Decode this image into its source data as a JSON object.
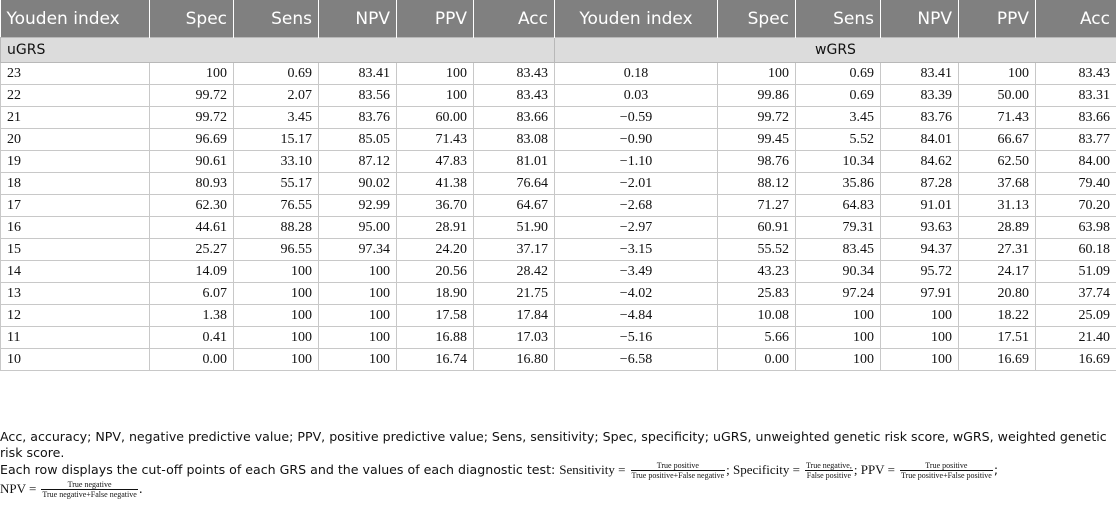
{
  "headers": [
    "Youden index",
    "Spec",
    "Sens",
    "NPV",
    "PPV",
    "Acc",
    "Youden index",
    "Spec",
    "Sens",
    "NPV",
    "PPV",
    "Acc"
  ],
  "group_left": "uGRS",
  "group_right": "wGRS",
  "rows": [
    [
      "23",
      "100",
      "0.69",
      "83.41",
      "100",
      "83.43",
      "0.18",
      "100",
      "0.69",
      "83.41",
      "100",
      "83.43"
    ],
    [
      "22",
      "99.72",
      "2.07",
      "83.56",
      "100",
      "83.43",
      "0.03",
      "99.86",
      "0.69",
      "83.39",
      "50.00",
      "83.31"
    ],
    [
      "21",
      "99.72",
      "3.45",
      "83.76",
      "60.00",
      "83.66",
      "−0.59",
      "99.72",
      "3.45",
      "83.76",
      "71.43",
      "83.66"
    ],
    [
      "20",
      "96.69",
      "15.17",
      "85.05",
      "71.43",
      "83.08",
      "−0.90",
      "99.45",
      "5.52",
      "84.01",
      "66.67",
      "83.77"
    ],
    [
      "19",
      "90.61",
      "33.10",
      "87.12",
      "47.83",
      "81.01",
      "−1.10",
      "98.76",
      "10.34",
      "84.62",
      "62.50",
      "84.00"
    ],
    [
      "18",
      "80.93",
      "55.17",
      "90.02",
      "41.38",
      "76.64",
      "−2.01",
      "88.12",
      "35.86",
      "87.28",
      "37.68",
      "79.40"
    ],
    [
      "17",
      "62.30",
      "76.55",
      "92.99",
      "36.70",
      "64.67",
      "−2.68",
      "71.27",
      "64.83",
      "91.01",
      "31.13",
      "70.20"
    ],
    [
      "16",
      "44.61",
      "88.28",
      "95.00",
      "28.91",
      "51.90",
      "−2.97",
      "60.91",
      "79.31",
      "93.63",
      "28.89",
      "63.98"
    ],
    [
      "15",
      "25.27",
      "96.55",
      "97.34",
      "24.20",
      "37.17",
      "−3.15",
      "55.52",
      "83.45",
      "94.37",
      "27.31",
      "60.18"
    ],
    [
      "14",
      "14.09",
      "100",
      "100",
      "20.56",
      "28.42",
      "−3.49",
      "43.23",
      "90.34",
      "95.72",
      "24.17",
      "51.09"
    ],
    [
      "13",
      "6.07",
      "100",
      "100",
      "18.90",
      "21.75",
      "−4.02",
      "25.83",
      "97.24",
      "97.91",
      "20.80",
      "37.74"
    ],
    [
      "12",
      "1.38",
      "100",
      "100",
      "17.58",
      "17.84",
      "−4.84",
      "10.08",
      "100",
      "100",
      "18.22",
      "25.09"
    ],
    [
      "11",
      "0.41",
      "100",
      "100",
      "16.88",
      "17.03",
      "−5.16",
      "5.66",
      "100",
      "100",
      "17.51",
      "21.40"
    ],
    [
      "10",
      "0.00",
      "100",
      "100",
      "16.74",
      "16.80",
      "−6.58",
      "0.00",
      "100",
      "100",
      "16.69",
      "16.69"
    ]
  ],
  "footnote1": "Acc, accuracy; NPV, negative predictive value; PPV, positive predictive value; Sens, sensitivity; Spec, specificity; uGRS, unweighted genetic risk score, wGRS, weighted genetic risk score.",
  "footnote2_intro": "Each row displays the cut-off points of each GRS and the values of each diagnostic test:",
  "sens_label": "Sensitivity =",
  "sens_num": "True positive",
  "sens_den": "True positive+False negative",
  "spec_label": "; Specificity =",
  "spec_num": "True negative,",
  "spec_den": "False positive",
  "ppv_label": "; PPV =",
  "ppv_num": "True positive",
  "ppv_den": "True positive+False positive",
  "npv_label": "NPV =",
  "npv_num": "True negative",
  "npv_den": "True negative+False negative",
  "end_mark": "."
}
